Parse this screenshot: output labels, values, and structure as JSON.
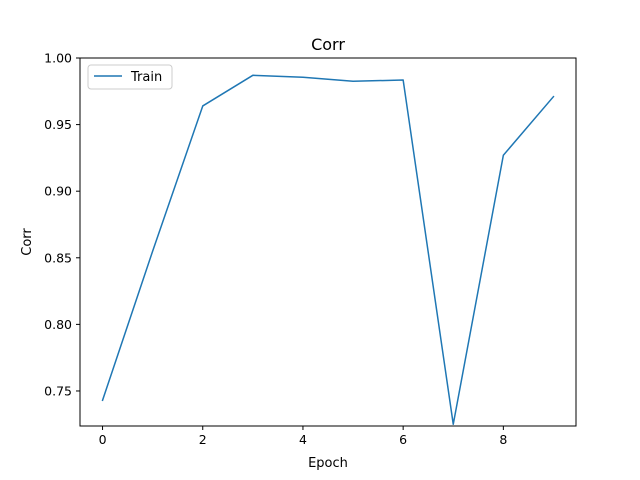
{
  "chart_data": {
    "type": "line",
    "title": "Corr",
    "xlabel": "Epoch",
    "ylabel": "Corr",
    "xlim": [
      -0.45,
      9.45
    ],
    "ylim": [
      0.7237,
      1.0
    ],
    "x_ticks": [
      0,
      2,
      4,
      6,
      8
    ],
    "x_tick_labels": [
      "0",
      "2",
      "4",
      "6",
      "8"
    ],
    "y_ticks": [
      0.75,
      0.8,
      0.85,
      0.9,
      0.95,
      1.0
    ],
    "y_tick_labels": [
      "0.75",
      "0.80",
      "0.85",
      "0.90",
      "0.95",
      "1.00"
    ],
    "grid": false,
    "legend_position": "top-left",
    "series": [
      {
        "name": "Train",
        "color": "#1f77b4",
        "x": [
          0,
          1,
          2,
          3,
          4,
          5,
          6,
          7,
          8,
          9
        ],
        "y": [
          0.743,
          0.855,
          0.964,
          0.987,
          0.9855,
          0.9825,
          0.9835,
          0.725,
          0.927,
          0.971
        ]
      }
    ]
  }
}
